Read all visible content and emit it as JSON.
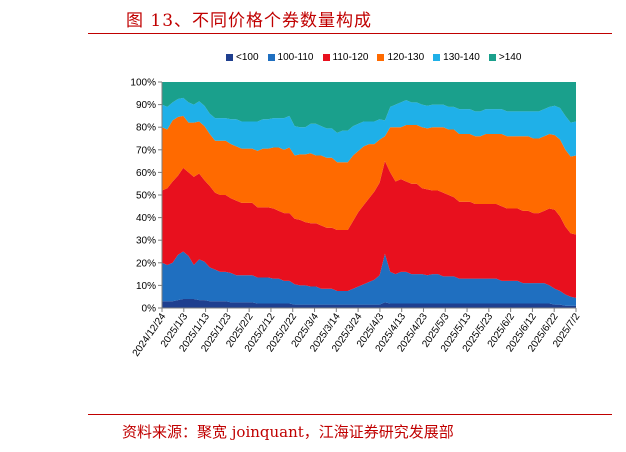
{
  "header": {
    "title": "图 13、不同价格个券数量构成"
  },
  "footer": {
    "source": "资料来源：聚宽 joinquant，江海证券研究发展部"
  },
  "chart_data": {
    "type": "area",
    "stacked": true,
    "percent": true,
    "ylim": [
      0,
      100
    ],
    "yticks": [
      "0%",
      "10%",
      "20%",
      "30%",
      "40%",
      "50%",
      "60%",
      "70%",
      "80%",
      "90%",
      "100%"
    ],
    "xticks": [
      "2024/12/24",
      "2025/1/3",
      "2025/1/13",
      "2025/1/23",
      "2025/2/2",
      "2025/2/12",
      "2025/2/22",
      "2025/3/4",
      "2025/3/14",
      "2025/3/24",
      "2025/4/3",
      "2025/4/13",
      "2025/4/23",
      "2025/5/3",
      "2025/5/13",
      "2025/5/23",
      "2025/6/2",
      "2025/6/12",
      "2025/6/22",
      "2025/7/2"
    ],
    "x": [
      "2024/12/24",
      "2024/12/26",
      "2024/12/28",
      "2024/12/30",
      "2025/1/1",
      "2025/1/3",
      "2025/1/5",
      "2025/1/8",
      "2025/1/10",
      "2025/1/13",
      "2025/1/15",
      "2025/1/18",
      "2025/1/20",
      "2025/1/23",
      "2025/1/26",
      "2025/1/28",
      "2025/1/31",
      "2025/2/2",
      "2025/2/4",
      "2025/2/7",
      "2025/2/9",
      "2025/2/12",
      "2025/2/14",
      "2025/2/17",
      "2025/2/19",
      "2025/2/22",
      "2025/2/24",
      "2025/2/27",
      "2025/3/1",
      "2025/3/4",
      "2025/3/6",
      "2025/3/9",
      "2025/3/11",
      "2025/3/14",
      "2025/3/16",
      "2025/3/19",
      "2025/3/21",
      "2025/3/24",
      "2025/3/26",
      "2025/3/29",
      "2025/3/31",
      "2025/4/3",
      "2025/4/5",
      "2025/4/7",
      "2025/4/9",
      "2025/4/11",
      "2025/4/13",
      "2025/4/16",
      "2025/4/18",
      "2025/4/21",
      "2025/4/23",
      "2025/4/26",
      "2025/4/28",
      "2025/5/1",
      "2025/5/3",
      "2025/5/6",
      "2025/5/8",
      "2025/5/11",
      "2025/5/13",
      "2025/5/16",
      "2025/5/18",
      "2025/5/21",
      "2025/5/23",
      "2025/5/26",
      "2025/5/28",
      "2025/6/2",
      "2025/6/4",
      "2025/6/7",
      "2025/6/9",
      "2025/6/12",
      "2025/6/14",
      "2025/6/17",
      "2025/6/19",
      "2025/6/22",
      "2025/6/24",
      "2025/6/27",
      "2025/6/29",
      "2025/7/2",
      "2025/7/4"
    ],
    "series": [
      {
        "name": "<100",
        "color": "#1f3f8f",
        "values": [
          3,
          3,
          3,
          3.5,
          4,
          4,
          4,
          3.5,
          3.5,
          3,
          3,
          3,
          3,
          2.5,
          2.5,
          2.5,
          2.5,
          2.5,
          2,
          2,
          2,
          2,
          2,
          2,
          2,
          1.5,
          1.5,
          1.5,
          1.5,
          1.5,
          1.5,
          1.5,
          1.5,
          1.5,
          1.5,
          1.5,
          1.5,
          1.5,
          1.5,
          1.5,
          1.5,
          1.5,
          2.5,
          2,
          2,
          2,
          2,
          2,
          2,
          2,
          2,
          2,
          2,
          2,
          2,
          2,
          2,
          2,
          2,
          2,
          2,
          2,
          2,
          2,
          2,
          2,
          2,
          2,
          2,
          2,
          2,
          2,
          2,
          2,
          1.5,
          1.5,
          1,
          1,
          1
        ]
      },
      {
        "name": "100-110",
        "color": "#1f6fc0",
        "values": [
          17,
          16,
          17,
          20,
          21,
          19,
          15,
          18,
          17,
          15,
          14,
          13,
          13,
          13,
          12,
          12,
          12,
          12,
          11.5,
          11.5,
          11.5,
          11,
          11,
          10,
          10,
          9,
          8.5,
          8.5,
          8,
          8,
          7,
          7,
          7,
          6,
          6,
          6,
          7,
          8,
          9,
          10,
          11,
          13,
          21.5,
          14,
          13,
          14,
          14,
          13,
          13,
          13,
          12.5,
          13,
          13,
          12,
          12,
          12,
          11,
          11,
          11,
          11,
          11,
          11,
          11,
          11,
          10,
          10,
          10,
          10,
          9,
          9,
          9,
          9,
          9,
          8,
          7,
          6,
          5,
          4,
          3.5
        ]
      },
      {
        "name": "110-120",
        "color": "#e8101e",
        "values": [
          32,
          34,
          36,
          35,
          37,
          37,
          39,
          38,
          36,
          36,
          34,
          34,
          34,
          33,
          33,
          32,
          32,
          32,
          31,
          31,
          31,
          31,
          30,
          30,
          30,
          29,
          29,
          28,
          28,
          28,
          28,
          27,
          27,
          27,
          27,
          27,
          30,
          33,
          35,
          37,
          39,
          41,
          41,
          44,
          41,
          41,
          40,
          40,
          40,
          38,
          38,
          37,
          37,
          37,
          36,
          35,
          34,
          34,
          34,
          33,
          33,
          33,
          33,
          33,
          33,
          32,
          32,
          32,
          32,
          32,
          31,
          31,
          32,
          34,
          35,
          33,
          30,
          28,
          28
        ]
      },
      {
        "name": "120-130",
        "color": "#ff6a00",
        "values": [
          28,
          26,
          27,
          26,
          23,
          22,
          24,
          23,
          24,
          23,
          23,
          24,
          24,
          24,
          24,
          24,
          24,
          24,
          25,
          26,
          26,
          27,
          28,
          28,
          29,
          28,
          29,
          30,
          31,
          30,
          31,
          31,
          31,
          30,
          30,
          30,
          29,
          27,
          26,
          24,
          21,
          19,
          11,
          20,
          24,
          23,
          25,
          26,
          26,
          27,
          27,
          28,
          28,
          29,
          29,
          30,
          30,
          30,
          30,
          30,
          30,
          31,
          31,
          31,
          32,
          32,
          32,
          32,
          33,
          33,
          33,
          33,
          33,
          33,
          33,
          34,
          34,
          34,
          35
        ]
      },
      {
        "name": "130-140",
        "color": "#1fb0e8",
        "values": [
          10,
          10,
          8,
          8,
          8,
          9,
          8,
          9,
          9,
          9,
          10,
          10,
          10,
          11,
          12,
          12,
          12,
          12,
          13,
          13,
          13,
          13,
          13,
          14,
          14,
          13,
          12,
          12,
          13,
          14,
          13,
          13,
          13,
          13,
          14,
          14,
          13,
          12,
          11,
          10,
          10,
          9,
          7,
          9,
          10,
          11,
          11,
          10,
          10,
          10,
          10,
          10,
          10,
          10,
          10,
          10,
          11,
          11,
          11,
          11,
          11,
          11,
          11,
          11,
          11,
          11,
          11,
          11,
          11,
          11,
          12,
          12,
          12,
          12,
          13,
          14,
          15,
          15,
          15
        ]
      },
      {
        "name": ">140",
        "color": "#1aa08c",
        "values": [
          10,
          11,
          9,
          7.5,
          7,
          9,
          10,
          8.5,
          10.5,
          14,
          16,
          16,
          16,
          16.5,
          16.5,
          17.5,
          17.5,
          17.5,
          17.5,
          16.5,
          16.5,
          16,
          16,
          16,
          15,
          19.5,
          20,
          20,
          18.5,
          18.5,
          19.5,
          20.5,
          20.5,
          22.5,
          21.5,
          21.5,
          19.5,
          18.5,
          17.5,
          17.5,
          17.5,
          16.5,
          17,
          11,
          10,
          9,
          8,
          9,
          9,
          10,
          10.5,
          10,
          10,
          10,
          11,
          11,
          12,
          12,
          12,
          13,
          13,
          12,
          12,
          12,
          12,
          13,
          13,
          13,
          13,
          13,
          13,
          13,
          12,
          11,
          10.5,
          11.5,
          15,
          18,
          17.5
        ]
      }
    ]
  }
}
